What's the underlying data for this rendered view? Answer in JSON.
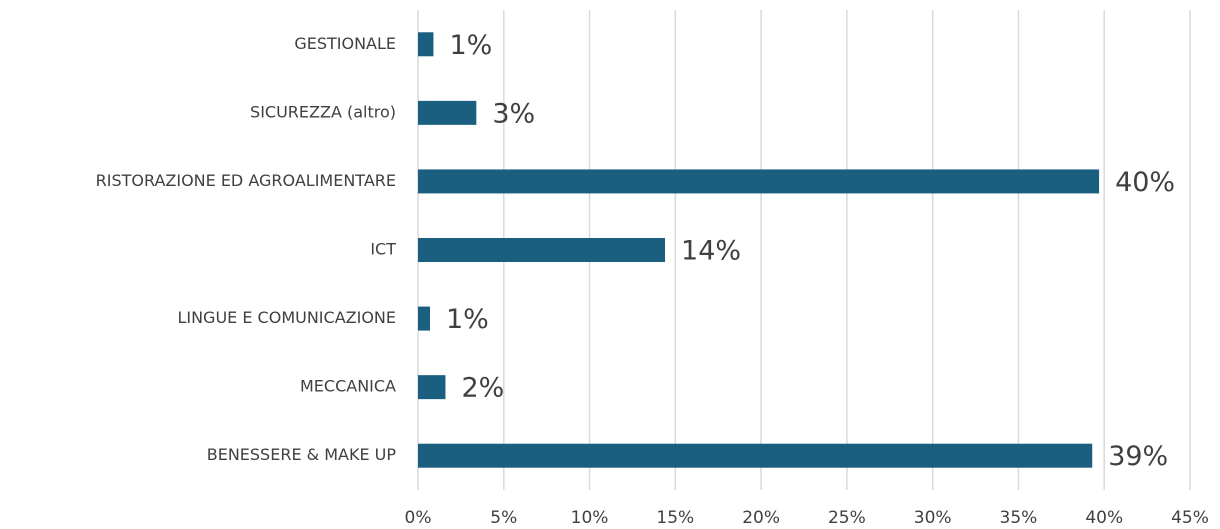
{
  "chart_data": {
    "type": "bar",
    "orientation": "horizontal",
    "categories": [
      "GESTIONALE",
      "SICUREZZA (altro)",
      "RISTORAZIONE ED AGROALIMENTARE",
      "ICT",
      "LINGUE E COMUNICAZIONE",
      "MECCANICA",
      "BENESSERE & MAKE UP"
    ],
    "values": [
      0.9,
      3.4,
      39.7,
      14.4,
      0.7,
      1.6,
      39.3
    ],
    "value_labels": [
      "1%",
      "3%",
      "40%",
      "14%",
      "1%",
      "2%",
      "39%"
    ],
    "color": "#1b5f80",
    "xlim": [
      0,
      45
    ],
    "xticks": [
      {
        "value": 0,
        "label": "0%"
      },
      {
        "value": 5,
        "label": "5%"
      },
      {
        "value": 10,
        "label": "10%"
      },
      {
        "value": 15,
        "label": "15%"
      },
      {
        "value": 20,
        "label": "20%"
      },
      {
        "value": 25,
        "label": "25%"
      },
      {
        "value": 30,
        "label": "30%"
      },
      {
        "value": 35,
        "label": "35%"
      },
      {
        "value": 40,
        "label": "40%"
      },
      {
        "value": 45,
        "label": "45%"
      }
    ],
    "grid": true
  }
}
